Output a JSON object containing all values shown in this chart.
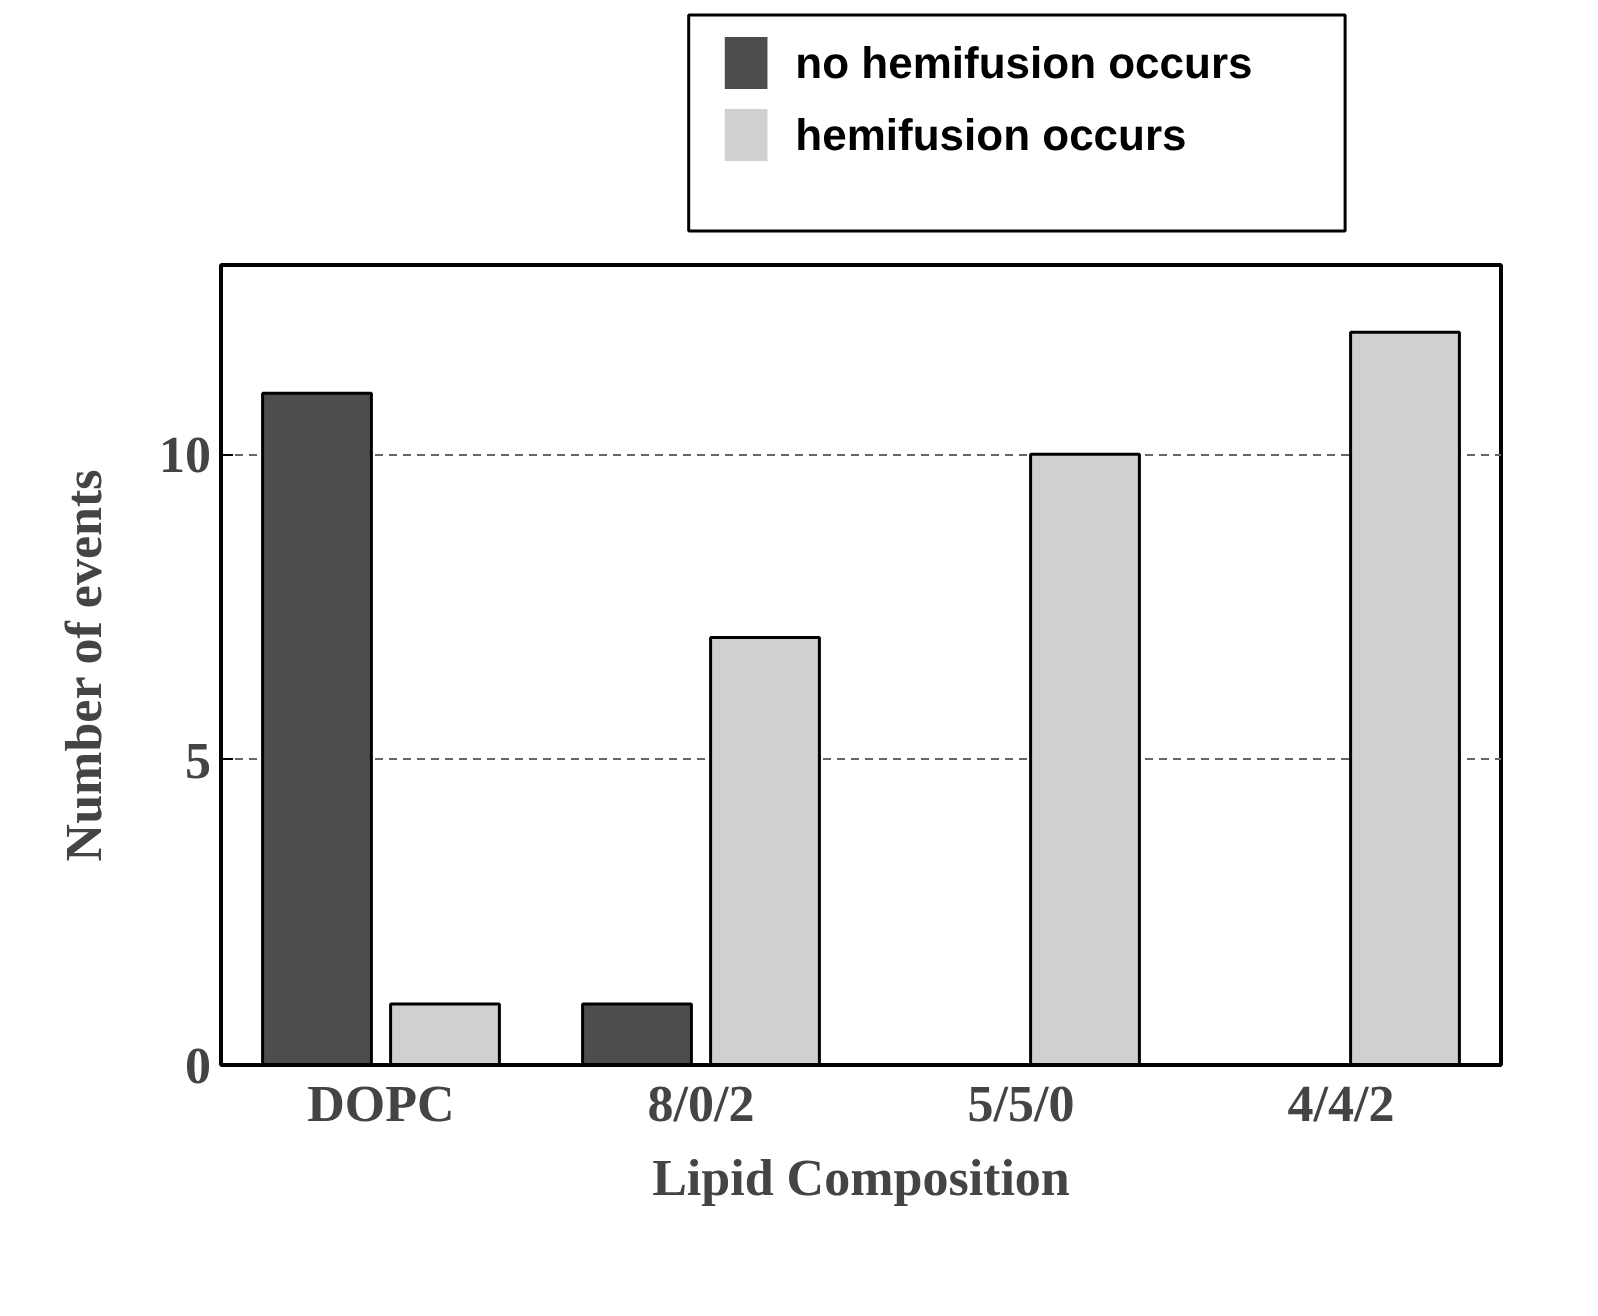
{
  "chart_data": {
    "type": "bar",
    "xlabel": "Lipid Composition",
    "ylabel": "Number of events",
    "categories": [
      "DOPC",
      "8/0/2",
      "5/5/0",
      "4/4/2"
    ],
    "series": [
      {
        "name": "no hemifusion occurs",
        "color": "#4d4d4d",
        "values": [
          11,
          1,
          0,
          0
        ]
      },
      {
        "name": "hemifusion occurs",
        "color": "#d0d0d0",
        "values": [
          1,
          7,
          10,
          12
        ]
      }
    ],
    "ylim": [
      0,
      13.1
    ],
    "yticks": [
      0,
      5,
      10
    ],
    "grid": "y",
    "legend": "top"
  }
}
